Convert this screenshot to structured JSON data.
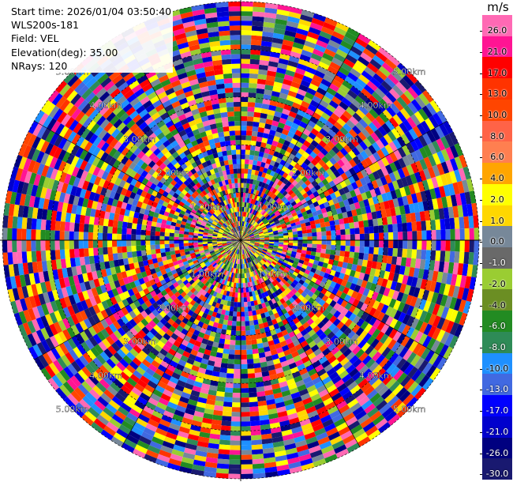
{
  "info": {
    "start_time": "Start time: 2026/01/04 03:50:40",
    "site": "WLS200s-181",
    "field": "Field: VEL",
    "elevation": "Elevation(deg): 35.00",
    "nrays": "NRays: 120"
  },
  "chart_data": {
    "type": "ppi",
    "nrays": 120,
    "nbins": 50,
    "max_range_km": 5.0,
    "range_rings_km": [
      1,
      2,
      3,
      4,
      5
    ],
    "range_ring_labels": [
      "1.00km",
      "2.00km",
      "3.00km",
      "4.00km",
      "5.00km"
    ],
    "colorbar": {
      "unit": "m/s",
      "ticks": [
        "26.0",
        "21.0",
        "17.0",
        "13.0",
        "10.0",
        "8.0",
        "6.0",
        "4.0",
        "2.0",
        "1.0",
        "0.0",
        "-1.0",
        "-2.0",
        "-4.0",
        "-6.0",
        "-8.0",
        "-10.0",
        "-13.0",
        "-17.0",
        "-21.0",
        "-26.0",
        "-30.0"
      ],
      "colors_top_to_bottom": [
        "#ff69b4",
        "#ff1493",
        "#ff0000",
        "#ff3300",
        "#ff4500",
        "#ff6347",
        "#ff7f50",
        "#ffa500",
        "#ffff00",
        "#ffd700",
        "#778899",
        "#696969",
        "#9acd32",
        "#6b8e23",
        "#228b22",
        "#2e8b57",
        "#1e90ff",
        "#4169e1",
        "#0000ff",
        "#0000cd",
        "#000080",
        "#191970"
      ]
    }
  }
}
